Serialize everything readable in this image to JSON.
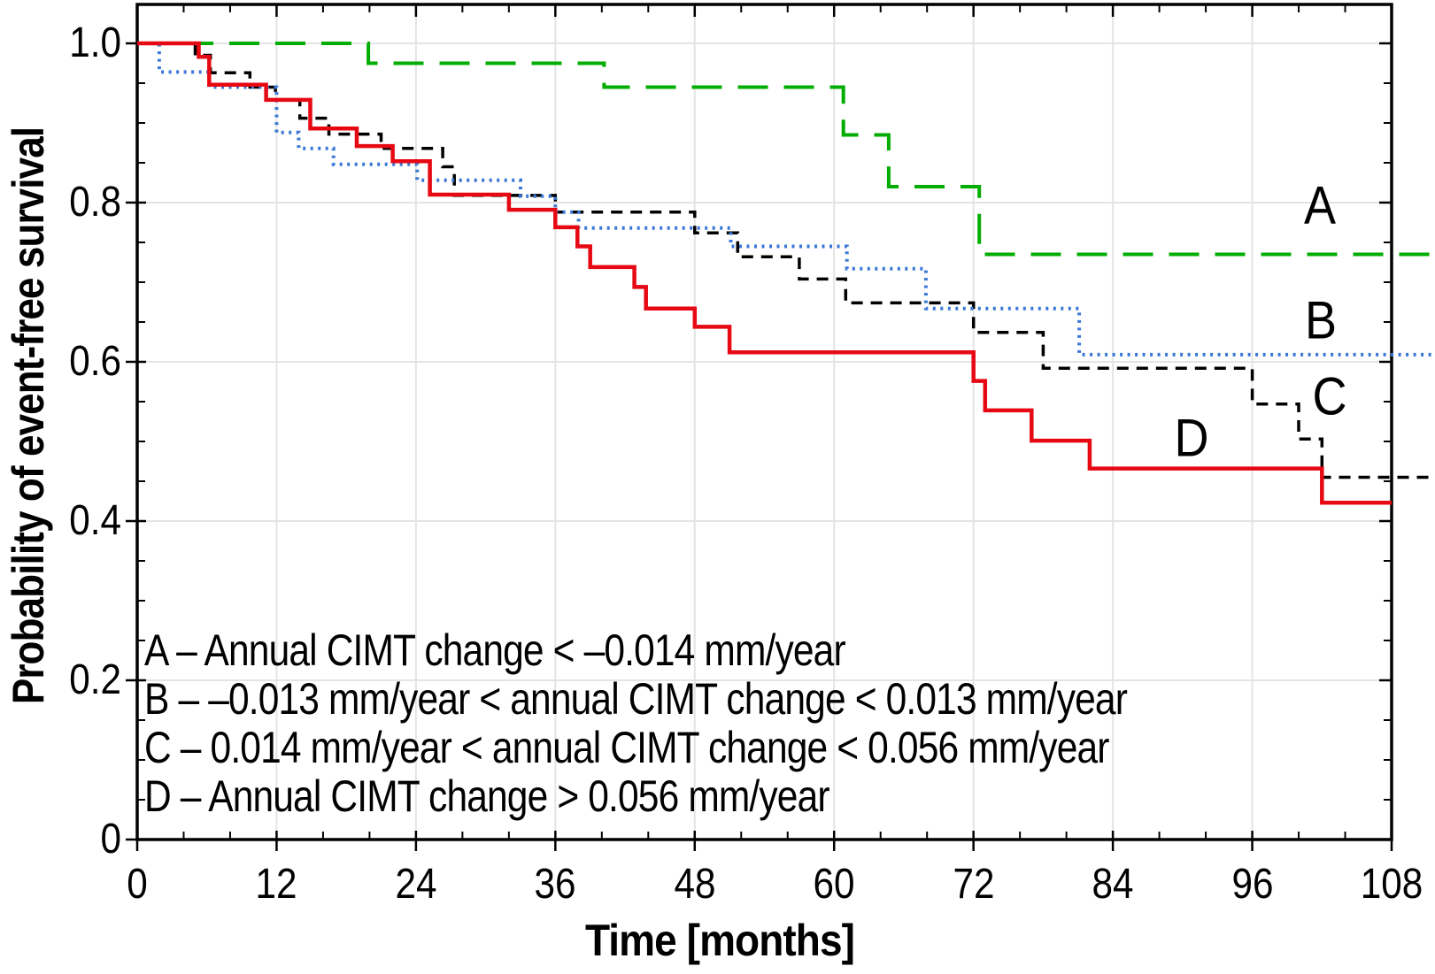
{
  "page": {
    "background": "#ffffff"
  },
  "chart_data": {
    "type": "line",
    "subtype": "kaplan-meier-step",
    "title": "",
    "xlabel": "Time [months]",
    "ylabel": "Probability of event-free survival",
    "xlim": [
      0,
      108
    ],
    "ylim": [
      0,
      1.0
    ],
    "grid": {
      "on": true,
      "color": "#e4e4e4",
      "x_values": [
        12,
        24,
        36,
        48,
        60,
        72,
        84,
        96
      ],
      "y_values": [
        0.2,
        0.4,
        0.6,
        0.8,
        1.0
      ]
    },
    "frame_color": "#000000",
    "x_ticks": {
      "major": [
        0,
        12,
        24,
        36,
        48,
        60,
        72,
        84,
        96,
        108
      ],
      "major_labels": [
        "0",
        "12",
        "24",
        "36",
        "48",
        "60",
        "72",
        "84",
        "96",
        "108"
      ],
      "minor_step": 4
    },
    "y_ticks": {
      "major": [
        0,
        0.2,
        0.4,
        0.6,
        0.8,
        1.0
      ],
      "major_labels": [
        "0",
        "0.2",
        "0.4",
        "0.6",
        "0.8",
        "1.0"
      ],
      "minor_step": 0.05
    },
    "legend_position": "inside-bottom-left",
    "legend_lines": [
      "A – Annual CIMT change < –0.014 mm/year",
      "B – –0.013 mm/year < annual CIMT change < 0.013 mm/year",
      "C – 0.014 mm/year < annual CIMT change < 0.056 mm/year",
      "D – Annual CIMT change > 0.056 mm/year"
    ],
    "series": [
      {
        "name": "A",
        "description": "Annual CIMT change < -0.014 mm/year",
        "color": "#00ad00",
        "dash": "long-dash",
        "line_width": 4,
        "label_pos": {
          "t": 101.8,
          "p": 0.797
        },
        "end": 111.8,
        "steps": [
          [
            0,
            1.0
          ],
          [
            19.9,
            0.975
          ],
          [
            40.2,
            0.945
          ],
          [
            60.8,
            0.885
          ],
          [
            64.7,
            0.82
          ],
          [
            72.5,
            0.735
          ]
        ]
      },
      {
        "name": "C",
        "description": "0.014 mm/year < annual CIMT change < 0.056 mm/year",
        "color": "#000000",
        "dash": "dash",
        "line_width": 3.5,
        "start_solid": true,
        "label_pos": {
          "t": 102.7,
          "p": 0.557
        },
        "end": 111.8,
        "steps": [
          [
            0,
            1.0
          ],
          [
            5,
            0.985
          ],
          [
            6.3,
            0.963
          ],
          [
            9.7,
            0.945
          ],
          [
            11.9,
            0.929
          ],
          [
            14,
            0.906
          ],
          [
            16.5,
            0.886
          ],
          [
            21,
            0.868
          ],
          [
            26.3,
            0.845
          ],
          [
            27.3,
            0.809
          ],
          [
            36,
            0.788
          ],
          [
            48,
            0.762
          ],
          [
            51.7,
            0.732
          ],
          [
            57,
            0.704
          ],
          [
            61,
            0.674
          ],
          [
            72,
            0.637
          ],
          [
            78,
            0.592
          ],
          [
            96,
            0.547
          ],
          [
            100,
            0.503
          ],
          [
            102,
            0.455
          ]
        ]
      },
      {
        "name": "B",
        "description": "-0.013 mm/year < annual CIMT change < 0.013 mm/year",
        "color": "#3a78d7",
        "dash": "dotted",
        "line_width": 4,
        "label_pos": {
          "t": 101.9,
          "p": 0.652
        },
        "end": 111.8,
        "steps": [
          [
            0,
            1.0
          ],
          [
            1.9,
            0.964
          ],
          [
            6.2,
            0.945
          ],
          [
            12,
            0.888
          ],
          [
            13.9,
            0.868
          ],
          [
            16.9,
            0.848
          ],
          [
            24.1,
            0.828
          ],
          [
            33,
            0.808
          ],
          [
            36,
            0.788
          ],
          [
            38,
            0.768
          ],
          [
            51.1,
            0.745
          ],
          [
            61.1,
            0.717
          ],
          [
            67.9,
            0.667
          ],
          [
            81.1,
            0.609
          ]
        ]
      },
      {
        "name": "D",
        "description": "Annual CIMT change > 0.056 mm/year",
        "color": "#e60914",
        "dash": "solid",
        "line_width": 4.5,
        "label_pos": {
          "t": 90.8,
          "p": 0.504
        },
        "end": 108,
        "steps": [
          [
            0,
            1.0
          ],
          [
            5.3,
            0.983
          ],
          [
            6.2,
            0.948
          ],
          [
            11.1,
            0.929
          ],
          [
            14.9,
            0.893
          ],
          [
            18.9,
            0.871
          ],
          [
            22,
            0.852
          ],
          [
            25.2,
            0.81
          ],
          [
            32,
            0.791
          ],
          [
            36,
            0.769
          ],
          [
            37.9,
            0.745
          ],
          [
            39,
            0.719
          ],
          [
            42.8,
            0.694
          ],
          [
            43.8,
            0.667
          ],
          [
            48,
            0.644
          ],
          [
            51,
            0.612
          ],
          [
            72,
            0.576
          ],
          [
            73,
            0.539
          ],
          [
            77,
            0.501
          ],
          [
            82,
            0.466
          ],
          [
            102,
            0.423
          ]
        ]
      }
    ]
  }
}
